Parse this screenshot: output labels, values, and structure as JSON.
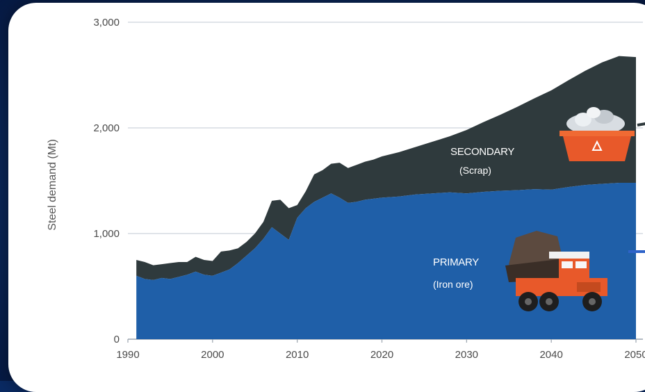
{
  "chart_data": {
    "type": "area",
    "stacked": true,
    "ylabel": "Steel demand (Mt)",
    "xlabel": "",
    "xlim": [
      1990,
      2050
    ],
    "ylim": [
      0,
      3000
    ],
    "x_ticks": [
      "1990",
      "2000",
      "2010",
      "2020",
      "2030",
      "2040",
      "2050"
    ],
    "y_ticks": [
      "0",
      "1,000",
      "2,000",
      "3,000"
    ],
    "grid": true,
    "colors": {
      "primary": "#1f5fa8",
      "secondary": "#2f3a3d",
      "grid": "#d6dbe2",
      "accent_blue": "#2e63c9"
    },
    "series": [
      {
        "name": "PRIMARY",
        "sublabel": "(Iron ore)",
        "x": [
          1991,
          1992,
          1993,
          1994,
          1995,
          1996,
          1997,
          1998,
          1999,
          2000,
          2001,
          2002,
          2003,
          2004,
          2005,
          2006,
          2007,
          2008,
          2009,
          2010,
          2011,
          2012,
          2013,
          2014,
          2015,
          2016,
          2017,
          2018,
          2019,
          2020,
          2022,
          2024,
          2026,
          2028,
          2030,
          2032,
          2034,
          2036,
          2038,
          2040,
          2042,
          2044,
          2046,
          2048,
          2050
        ],
        "values": [
          600,
          570,
          560,
          580,
          570,
          590,
          610,
          640,
          610,
          600,
          630,
          660,
          720,
          790,
          860,
          950,
          1060,
          1000,
          940,
          1150,
          1240,
          1300,
          1340,
          1380,
          1340,
          1290,
          1300,
          1320,
          1330,
          1340,
          1350,
          1370,
          1380,
          1390,
          1380,
          1395,
          1405,
          1410,
          1420,
          1415,
          1440,
          1460,
          1470,
          1480,
          1480
        ]
      },
      {
        "name": "SECONDARY",
        "sublabel": "(Scrap)",
        "x": [
          1991,
          1992,
          1993,
          1994,
          1995,
          1996,
          1997,
          1998,
          1999,
          2000,
          2001,
          2002,
          2003,
          2004,
          2005,
          2006,
          2007,
          2008,
          2009,
          2010,
          2011,
          2012,
          2013,
          2014,
          2015,
          2016,
          2017,
          2018,
          2019,
          2020,
          2022,
          2024,
          2026,
          2028,
          2030,
          2032,
          2034,
          2036,
          2038,
          2040,
          2042,
          2044,
          2046,
          2048,
          2050
        ],
        "values": [
          150,
          160,
          140,
          130,
          150,
          140,
          120,
          140,
          140,
          140,
          200,
          180,
          140,
          130,
          140,
          160,
          250,
          320,
          300,
          120,
          160,
          260,
          260,
          280,
          330,
          330,
          350,
          360,
          370,
          390,
          420,
          450,
          490,
          530,
          600,
          660,
          720,
          790,
          860,
          940,
          1010,
          1080,
          1150,
          1200,
          1190
        ]
      }
    ],
    "annotations": [
      {
        "text": "SECONDARY",
        "series": "SECONDARY"
      },
      {
        "text": "(Scrap)",
        "series": "SECONDARY"
      },
      {
        "text": "PRIMARY",
        "series": "PRIMARY"
      },
      {
        "text": "(Iron ore)",
        "series": "PRIMARY"
      }
    ],
    "icons": [
      "scrap-skip-icon",
      "mining-truck-icon"
    ]
  }
}
